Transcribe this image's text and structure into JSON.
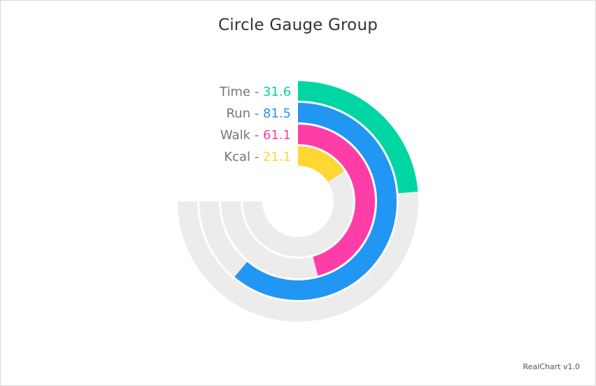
{
  "title": "Circle Gauge Group",
  "credit": "RealChart v1.0",
  "chart_data": {
    "type": "gauge",
    "title": "Circle Gauge Group",
    "min": 0,
    "max": 100,
    "sweep_degrees": 270,
    "start_angle": "12 o'clock, clockwise",
    "track_color": "#ececec",
    "label_color": "#777777",
    "separator": " - ",
    "series": [
      {
        "name": "Time",
        "value": 31.6,
        "display": "31.6",
        "color": "#00d6a3"
      },
      {
        "name": "Run",
        "value": 81.5,
        "display": "81.5",
        "color": "#2196f3"
      },
      {
        "name": "Walk",
        "value": 61.1,
        "display": "61.1",
        "color": "#ff3da8"
      },
      {
        "name": "Kcal",
        "value": 21.1,
        "display": "21.1",
        "color": "#ffd733"
      }
    ]
  }
}
